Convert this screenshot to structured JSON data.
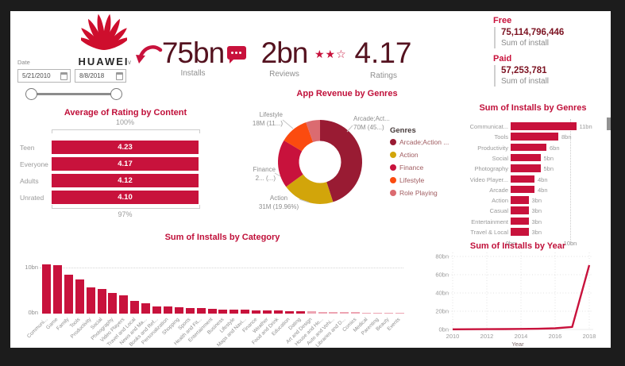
{
  "brand": {
    "name": "HUAWEI"
  },
  "icons": {
    "chevron_down": "∨"
  },
  "slicer": {
    "label": "Date",
    "start_date": "5/21/2010",
    "end_date": "8/8/2018"
  },
  "kpis": [
    {
      "value": "75bn",
      "label": "Installs",
      "icon": "curved-arrow-icon"
    },
    {
      "value": "2bn",
      "label": "Reviews",
      "icon": "speech-bubble-icon"
    },
    {
      "value": "4.17",
      "label": "Ratings",
      "icon": "stars-icon",
      "stars": "★★☆"
    }
  ],
  "cards": {
    "free": {
      "title": "Free",
      "value": "75,114,796,446",
      "caption": "Sum of install"
    },
    "paid": {
      "title": "Paid",
      "value": "57,253,781",
      "caption": "Sum of install"
    }
  },
  "colors": {
    "crimson": "#C8123C",
    "dark_maroon": "#991B33",
    "gold": "#D2A50A",
    "orange": "#FB4B0F",
    "salmon": "#DB6B70",
    "kpi_number": "#54121F",
    "title_red": "#C0103A",
    "light_pink": "#EDA4B2"
  },
  "chart_data": [
    {
      "id": "average-rating-by-content",
      "type": "bar",
      "orientation": "horizontal",
      "title": "Average of Rating by Content",
      "categories": [
        "Teen",
        "Everyone",
        "Adults",
        "Unrated"
      ],
      "values": [
        4.23,
        4.17,
        4.12,
        4.1
      ],
      "value_labels": [
        "4.23",
        "4.17",
        "4.12",
        "4.10"
      ],
      "top_label": "100%",
      "bottom_label": "97%"
    },
    {
      "id": "app-revenue-by-genres",
      "type": "pie",
      "title": "App Revenue by Genres",
      "legend_title": "Genres",
      "legend_position": "right",
      "series": [
        {
          "name": "Arcade;Action ...",
          "value": 45.0,
          "color": "#991B33"
        },
        {
          "name": "Action",
          "value": 19.96,
          "color": "#D2A50A"
        },
        {
          "name": "Finance",
          "value": 18.6,
          "color": "#C8123C"
        },
        {
          "name": "Lifestyle",
          "value": 11.0,
          "color": "#FB4B0F"
        },
        {
          "name": "Role Playing",
          "value": 5.44,
          "color": "#DB6B70"
        }
      ],
      "callouts": [
        {
          "line1": "Arcade;Act...",
          "line2": "70M (45...)"
        },
        {
          "line1": "Lifestyle",
          "line2": "18M (11...)"
        },
        {
          "line1": "Finance",
          "line2": "2... (...)"
        },
        {
          "line1": "Action",
          "line2": "31M (19.96%)"
        }
      ]
    },
    {
      "id": "sum-of-installs-by-genres",
      "type": "bar",
      "orientation": "horizontal",
      "title": "Sum of Installs by Genres",
      "categories": [
        "Communicat...",
        "Tools",
        "Productivity",
        "Social",
        "Photography",
        "Video Player...",
        "Arcade",
        "Action",
        "Casual",
        "Entertainment",
        "Travel & Local"
      ],
      "values": [
        11,
        8,
        6,
        5,
        5,
        4,
        4,
        3,
        3,
        3,
        3
      ],
      "value_labels": [
        "11bn",
        "8bn",
        "6bn",
        "5bn",
        "5bn",
        "4bn",
        "4bn",
        "3bn",
        "3bn",
        "3bn",
        "3bn"
      ],
      "xticks": [
        "0bn",
        "10bn"
      ],
      "xlim": [
        0,
        12
      ]
    },
    {
      "id": "sum-of-installs-by-category",
      "type": "bar",
      "orientation": "vertical",
      "title": "Sum of Installs by Category",
      "categories": [
        "Communi...",
        "Game",
        "Family",
        "Tools",
        "Productivity",
        "Social",
        "Photography",
        "Video Players",
        "Travel and Local",
        "News and Ma...",
        "Books and Ref...",
        "Personalization",
        "Shopping",
        "Sports",
        "Health and Fit...",
        "Entertainment",
        "Business",
        "Lifestyle",
        "Maps and Navi...",
        "Finance",
        "Weather",
        "Food and Drink",
        "Education",
        "Dating",
        "Art and Design",
        "House and Ho...",
        "Auto and Vehi...",
        "Libraries and D...",
        "Comics",
        "Medical",
        "Parenting",
        "Beauty",
        "Events"
      ],
      "values": [
        10.7,
        10.5,
        8.4,
        7.4,
        5.7,
        5.3,
        4.5,
        4.0,
        2.8,
        2.2,
        1.6,
        1.5,
        1.4,
        1.2,
        1.2,
        1.0,
        0.9,
        0.85,
        0.8,
        0.75,
        0.7,
        0.65,
        0.55,
        0.5,
        0.45,
        0.4,
        0.35,
        0.3,
        0.27,
        0.24,
        0.2,
        0.17,
        0.14
      ],
      "yticks": [
        "0bn",
        "10bn"
      ],
      "ylim": [
        0,
        11
      ]
    },
    {
      "id": "sum-of-installs-by-year",
      "type": "line",
      "title": "Sum of Installs by Year",
      "x": [
        2010,
        2011,
        2012,
        2013,
        2014,
        2015,
        2016,
        2017,
        2018
      ],
      "values": [
        0.2,
        0.3,
        0.35,
        0.45,
        0.6,
        0.8,
        1.3,
        2.8,
        70.5
      ],
      "xticks": [
        "2010",
        "2012",
        "2014",
        "2016",
        "2018"
      ],
      "yticks": [
        "0bn",
        "20bn",
        "40bn",
        "60bn",
        "80bn"
      ],
      "ylim": [
        0,
        80
      ],
      "xlabel": "Year"
    }
  ]
}
